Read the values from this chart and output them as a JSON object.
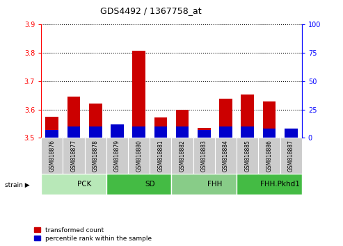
{
  "title": "GDS4492 / 1367758_at",
  "samples": [
    "GSM818876",
    "GSM818877",
    "GSM818878",
    "GSM818879",
    "GSM818880",
    "GSM818881",
    "GSM818882",
    "GSM818883",
    "GSM818884",
    "GSM818885",
    "GSM818886",
    "GSM818887"
  ],
  "red_values": [
    3.575,
    3.645,
    3.62,
    3.515,
    3.808,
    3.573,
    3.6,
    3.535,
    3.638,
    3.652,
    3.628,
    3.52
  ],
  "blue_values_pct": [
    7,
    10,
    10,
    12,
    10,
    10,
    10,
    7,
    10,
    10,
    8,
    8
  ],
  "y_min": 3.5,
  "y_max": 3.9,
  "y_ticks_red": [
    3.5,
    3.6,
    3.7,
    3.8,
    3.9
  ],
  "y_ticks_blue": [
    0,
    25,
    50,
    75,
    100
  ],
  "groups": [
    {
      "label": "PCK",
      "start": 0,
      "end": 3,
      "color": "#b8e8b8"
    },
    {
      "label": "SD",
      "start": 3,
      "end": 6,
      "color": "#44bb44"
    },
    {
      "label": "FHH",
      "start": 6,
      "end": 9,
      "color": "#88cc88"
    },
    {
      "label": "FHH.Pkhd1",
      "start": 9,
      "end": 12,
      "color": "#44bb44"
    }
  ],
  "red_color": "#cc0000",
  "blue_color": "#0000cc",
  "bar_width": 0.6,
  "tick_label_area_color": "#cccccc",
  "legend_red": "transformed count",
  "legend_blue": "percentile rank within the sample",
  "strain_label": "strain"
}
